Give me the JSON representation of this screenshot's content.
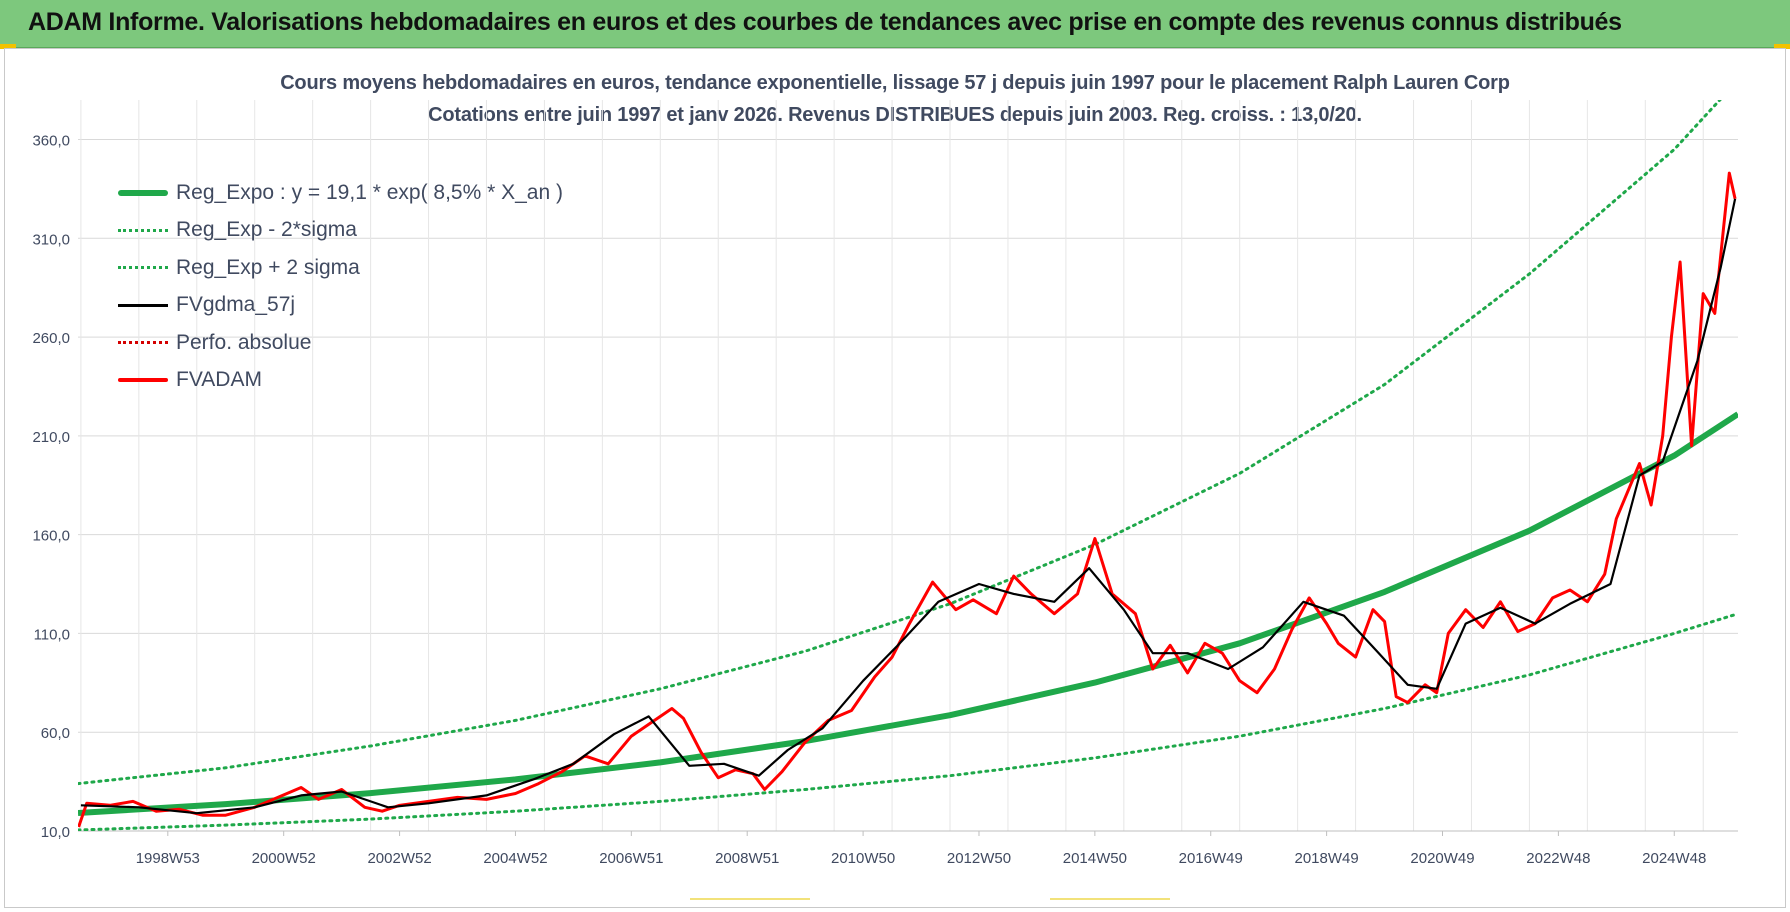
{
  "header": {
    "title": "ADAM Informe. Valorisations hebdomadaires en euros et des courbes de tendances avec prise en compte des revenus connus distribués"
  },
  "chart_data": {
    "type": "line",
    "title": "Cours moyens hebdomadaires en euros, tendance exponentielle, lissage 57 j depuis juin 1997 pour le placement Ralph Lauren Corp",
    "subtitle": "Cotations entre juin 1997 et janv 2026. Revenus DISTRIBUES depuis juin 2003. Reg. croiss. : 13,0/20.",
    "xlabel": "",
    "ylabel": "",
    "ylim": [
      10,
      380
    ],
    "xlim": [
      1997.45,
      2026.1
    ],
    "y_ticks": [
      "10,0",
      "60,0",
      "110,0",
      "160,0",
      "210,0",
      "260,0",
      "310,0",
      "360,0"
    ],
    "y_tick_values": [
      10,
      60,
      110,
      160,
      210,
      260,
      310,
      360
    ],
    "x_ticks": [
      "1998W53",
      "2000W52",
      "2002W52",
      "2004W52",
      "2006W51",
      "2008W51",
      "2010W50",
      "2012W50",
      "2014W50",
      "2016W49",
      "2018W49",
      "2020W49",
      "2022W48",
      "2024W48"
    ],
    "x_tick_values": [
      1999.0,
      2001.0,
      2003.0,
      2005.0,
      2007.0,
      2009.0,
      2011.0,
      2013.0,
      2015.0,
      2017.0,
      2019.0,
      2021.0,
      2023.0,
      2025.0
    ],
    "grid": true,
    "legend_position": "top-left",
    "series": [
      {
        "name": "Reg_Expo : y = 19,1 * exp( 8,5% *  X_an )",
        "color": "#1fa84a",
        "style": "solid-thick",
        "x": [
          1997.45,
          2000,
          2002.5,
          2005,
          2007.5,
          2010,
          2012.5,
          2015,
          2017.5,
          2020,
          2022.5,
          2025,
          2026.1
        ],
        "y": [
          19.1,
          23.6,
          29.2,
          36.1,
          44.7,
          55.5,
          68.6,
          85.1,
          105,
          131,
          162,
          200,
          221
        ]
      },
      {
        "name": "Reg_Exp - 2*sigma",
        "color": "#1fa84a",
        "style": "dotted",
        "x": [
          1997.45,
          2000,
          2002.5,
          2005,
          2007.5,
          2010,
          2012.5,
          2015,
          2017.5,
          2020,
          2022.5,
          2025,
          2026.1
        ],
        "y": [
          10.5,
          13,
          16,
          20,
          25,
          31,
          38,
          47,
          58,
          72,
          89,
          110,
          120
        ]
      },
      {
        "name": "Reg_Exp + 2 sigma",
        "color": "#1fa84a",
        "style": "dotted",
        "x": [
          1997.45,
          2000,
          2002.5,
          2005,
          2007.5,
          2010,
          2012.5,
          2015,
          2017.5,
          2020,
          2022.5,
          2025,
          2026.1
        ],
        "y": [
          34,
          42,
          53,
          66,
          82,
          101,
          125,
          155,
          191,
          236,
          292,
          355,
          390
        ]
      },
      {
        "name": "FVgdma_57j",
        "color": "#000000",
        "style": "solid",
        "x": [
          1997.5,
          1998.5,
          1999.5,
          2000.5,
          2001.3,
          2002.0,
          2002.8,
          2003.5,
          2004.5,
          2005.3,
          2006.0,
          2006.7,
          2007.3,
          2008.0,
          2008.6,
          2009.2,
          2009.7,
          2010.3,
          2011.0,
          2011.6,
          2012.3,
          2013.0,
          2013.6,
          2014.3,
          2014.9,
          2015.5,
          2016.0,
          2016.6,
          2017.3,
          2017.9,
          2018.6,
          2019.3,
          2019.9,
          2020.4,
          2020.9,
          2021.4,
          2022.0,
          2022.6,
          2023.2,
          2023.9,
          2024.4,
          2024.8,
          2025.4,
          2025.8,
          2026.05
        ],
        "y": [
          23,
          22,
          19,
          22,
          28,
          30,
          22,
          24,
          28,
          36,
          44,
          59,
          68,
          43,
          44,
          38,
          51,
          62,
          86,
          104,
          126,
          135,
          130,
          126,
          143,
          122,
          100,
          100,
          92,
          103,
          126,
          119,
          100,
          84,
          82,
          115,
          123,
          115,
          125,
          135,
          190,
          197,
          248,
          295,
          330
        ]
      },
      {
        "name": "Perfo. absolue",
        "color": "#d40000",
        "style": "dotted",
        "x": [],
        "y": []
      },
      {
        "name": "FVADAM",
        "color": "#ff0000",
        "style": "solid-thick",
        "x": [
          1997.46,
          1997.6,
          1998.0,
          1998.4,
          1998.8,
          1999.2,
          1999.6,
          2000.0,
          2000.5,
          2000.9,
          2001.3,
          2001.6,
          2002.0,
          2002.4,
          2002.7,
          2003.0,
          2003.5,
          2004.0,
          2004.5,
          2005.0,
          2005.4,
          2005.8,
          2006.2,
          2006.6,
          2007.0,
          2007.4,
          2007.7,
          2007.9,
          2008.2,
          2008.5,
          2008.8,
          2009.1,
          2009.3,
          2009.6,
          2010.0,
          2010.4,
          2010.8,
          2011.2,
          2011.5,
          2011.8,
          2012.2,
          2012.6,
          2012.9,
          2013.3,
          2013.6,
          2013.9,
          2014.3,
          2014.7,
          2015.0,
          2015.3,
          2015.7,
          2016.0,
          2016.3,
          2016.6,
          2016.9,
          2017.2,
          2017.5,
          2017.8,
          2018.1,
          2018.4,
          2018.7,
          2019.0,
          2019.2,
          2019.5,
          2019.8,
          2020.0,
          2020.2,
          2020.4,
          2020.7,
          2020.9,
          2021.1,
          2021.4,
          2021.7,
          2022.0,
          2022.3,
          2022.6,
          2022.9,
          2023.2,
          2023.5,
          2023.8,
          2024.0,
          2024.2,
          2024.4,
          2024.6,
          2024.8,
          2024.95,
          2025.1,
          2025.3,
          2025.5,
          2025.7,
          2025.85,
          2025.95,
          2026.05
        ],
        "y": [
          12,
          24,
          23,
          25,
          20,
          21,
          18,
          18,
          22,
          27,
          32,
          26,
          31,
          22,
          20,
          23,
          25,
          27,
          26,
          29,
          34,
          40,
          48,
          44,
          58,
          66,
          72,
          67,
          50,
          37,
          41,
          39,
          31,
          40,
          55,
          66,
          71,
          88,
          98,
          115,
          136,
          122,
          127,
          120,
          139,
          130,
          120,
          130,
          158,
          130,
          120,
          92,
          104,
          90,
          105,
          100,
          86,
          80,
          92,
          112,
          128,
          115,
          105,
          98,
          122,
          116,
          78,
          75,
          84,
          80,
          110,
          122,
          113,
          126,
          111,
          115,
          128,
          132,
          126,
          140,
          168,
          182,
          196,
          175,
          210,
          260,
          298,
          205,
          282,
          272,
          315,
          343,
          330
        ]
      }
    ]
  }
}
